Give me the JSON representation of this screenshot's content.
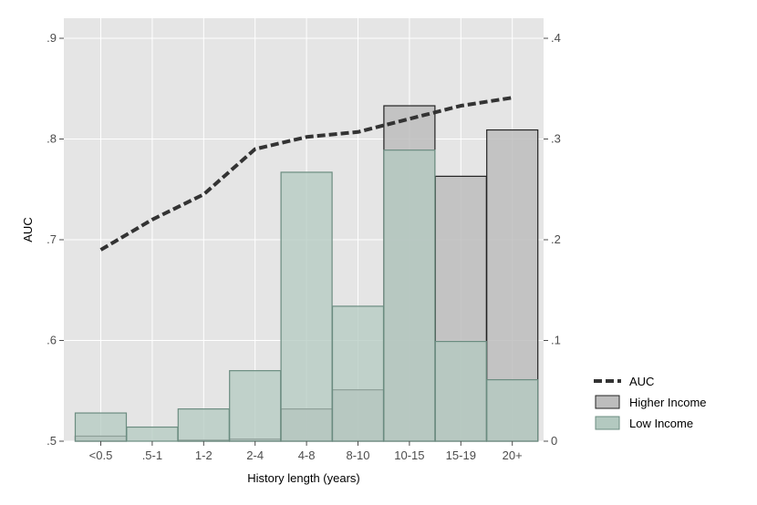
{
  "chart_data": {
    "type": "bar",
    "xlabel": "History length (years)",
    "ylabel": "AUC",
    "categories": [
      "<0.5",
      ".5-1",
      "1-2",
      "2-4",
      "4-8",
      "8-10",
      "10-15",
      "15-19",
      "20+"
    ],
    "left_axis": {
      "ylim": [
        0.5,
        0.9
      ],
      "ticks": [
        0.5,
        0.6,
        0.7,
        0.8,
        0.9
      ],
      "tick_labels": [
        ".5",
        ".6",
        ".7",
        ".8",
        ".9"
      ]
    },
    "right_axis": {
      "ylim": [
        0,
        0.4
      ],
      "ticks": [
        0,
        0.1,
        0.2,
        0.3,
        0.4
      ],
      "tick_labels": [
        "0",
        ".1",
        ".2",
        ".3",
        ".4"
      ]
    },
    "series": [
      {
        "name": "AUC",
        "kind": "dashed-line",
        "axis": "left",
        "color": "#333333",
        "values": [
          0.69,
          0.72,
          0.745,
          0.79,
          0.802,
          0.807,
          0.82,
          0.833,
          0.841
        ]
      },
      {
        "name": "Higher Income",
        "kind": "bar",
        "axis": "right",
        "fill": "#bdbdbd",
        "stroke": "#222222",
        "values": [
          0.005,
          0.0,
          0.001,
          0.002,
          0.032,
          0.051,
          0.333,
          0.263,
          0.309
        ]
      },
      {
        "name": "Low Income",
        "kind": "bar",
        "axis": "right",
        "fill": "#b3c9c0",
        "stroke": "#6b8c80",
        "values": [
          0.028,
          0.014,
          0.032,
          0.07,
          0.267,
          0.134,
          0.289,
          0.099,
          0.061
        ]
      }
    ],
    "grid": true,
    "legend_position": "right"
  }
}
